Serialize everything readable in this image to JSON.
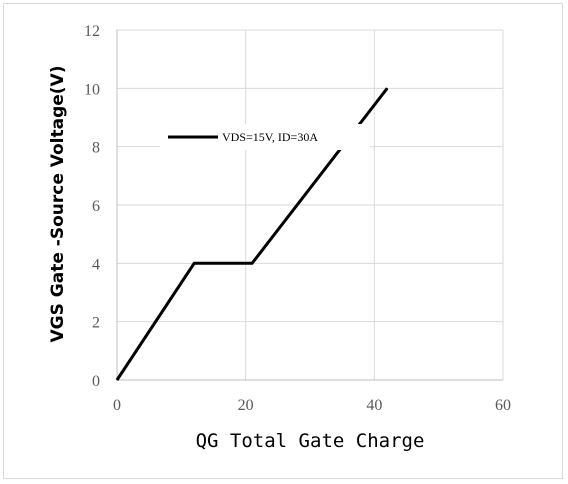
{
  "chart_data": {
    "type": "line",
    "title": "",
    "xlabel": "QG Total Gate Charge",
    "ylabel": "VGS Gate -Source Voltage(V)",
    "xlim": [
      0,
      60
    ],
    "ylim": [
      0,
      12
    ],
    "xticks": [
      0,
      20,
      40,
      60
    ],
    "yticks": [
      0,
      2,
      4,
      6,
      8,
      10,
      12
    ],
    "grid": true,
    "legend_placement": "center-left",
    "series": [
      {
        "name": "VDS=15V,  ID=30A",
        "color": "#000000",
        "points": [
          [
            0,
            0
          ],
          [
            12,
            4
          ],
          [
            21,
            4
          ],
          [
            42,
            10
          ]
        ]
      }
    ]
  }
}
